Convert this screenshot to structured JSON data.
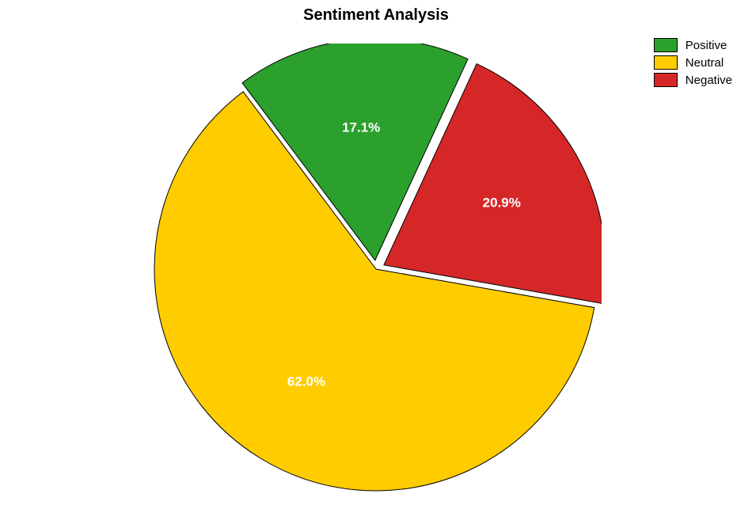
{
  "chart": {
    "type": "pie",
    "title": "Sentiment Analysis",
    "title_fontsize": 20,
    "title_fontweight": "bold",
    "background_color": "#ffffff",
    "slices": [
      {
        "name": "Positive",
        "value": 17.1,
        "label": "17.1%",
        "color": "#2ca02c",
        "explode": 0.04
      },
      {
        "name": "Neutral",
        "value": 62.0,
        "label": "62.0%",
        "color": "#ffcc00",
        "explode": 0.0
      },
      {
        "name": "Negative",
        "value": 20.9,
        "label": "20.9%",
        "color": "#d62728",
        "explode": 0.04
      }
    ],
    "slice_border_color": "#000000",
    "slice_border_width": 1,
    "slice_label_fontsize": 17,
    "slice_label_color": "#ffffff",
    "start_angle_deg": 65.25,
    "counterclockwise": true,
    "radius": 280,
    "label_distance": 0.6,
    "legend": {
      "position": "top-right",
      "items": [
        {
          "label": "Positive",
          "color": "#2ca02c"
        },
        {
          "label": "Neutral",
          "color": "#ffcc00"
        },
        {
          "label": "Negative",
          "color": "#d62728"
        }
      ],
      "swatch_border_color": "#000000",
      "label_fontsize": 15,
      "label_color": "#000000"
    }
  }
}
